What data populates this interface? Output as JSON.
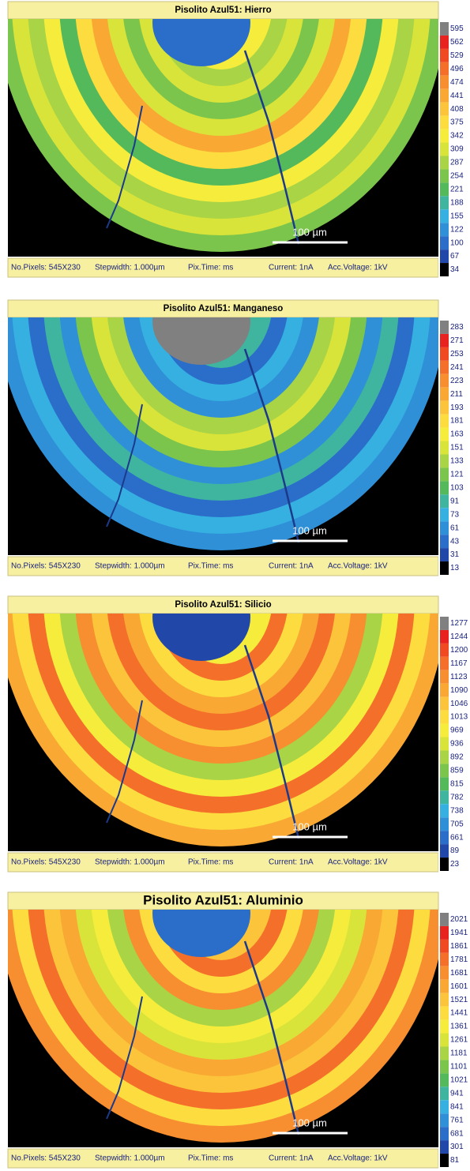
{
  "panels": [
    {
      "title": "Pisolito Azul51: Hierro",
      "scale_labels": [
        595,
        562,
        529,
        496,
        474,
        441,
        408,
        375,
        342,
        309,
        287,
        254,
        221,
        188,
        155,
        122,
        100,
        67,
        34
      ],
      "scale_bar": "100 µm",
      "footer": [
        "No.Pixels: 545X230",
        "Stepwidth: 1.000µm",
        "Pix.Time: ms",
        "Current: 1nA",
        "Acc.Voltage: 1kV"
      ]
    },
    {
      "title": "Pisolito Azul51: Manganeso",
      "scale_labels": [
        283,
        271,
        253,
        241,
        223,
        211,
        193,
        181,
        163,
        151,
        133,
        121,
        103,
        91,
        73,
        61,
        43,
        31,
        13
      ],
      "scale_bar": "100 µm",
      "footer": [
        "No.Pixels: 545X230",
        "Stepwidth: 1.000µm",
        "Pix.Time: ms",
        "Current: 1nA",
        "Acc.Voltage: 1kV"
      ]
    },
    {
      "title": "Pisolito Azul51: Silicio",
      "scale_labels": [
        1277,
        1244,
        1200,
        1167,
        1123,
        1090,
        1046,
        1013,
        969,
        936,
        892,
        859,
        815,
        782,
        738,
        705,
        661,
        89,
        23
      ],
      "scale_bar": "100 µm",
      "footer": [
        "No.Pixels: 545X230",
        "Stepwidth: 1.000µm",
        "Pix.Time: ms",
        "Current: 1nA",
        "Acc.Voltage: 1kV"
      ]
    },
    {
      "title": "Pisolito Azul51: Aluminio",
      "scale_labels": [
        2021,
        1941,
        1861,
        1781,
        1681,
        1601,
        1521,
        1441,
        1361,
        1261,
        1181,
        1101,
        1021,
        941,
        841,
        761,
        681,
        301,
        81
      ],
      "scale_bar": "100 µm",
      "footer": [
        "No.Pixels: 545X230",
        "Stepwidth: 1.000µm",
        "Pix.Time: ms",
        "Current: 1nA",
        "Acc.Voltage: 1kV"
      ]
    }
  ]
}
